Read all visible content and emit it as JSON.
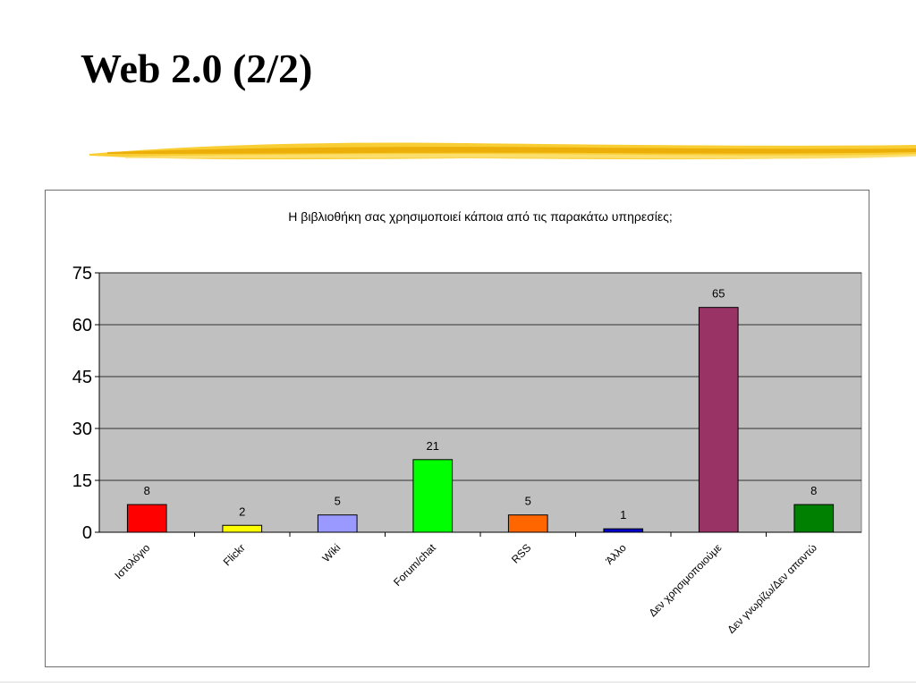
{
  "slide": {
    "title": "Web 2.0 (2/2)"
  },
  "colors": {
    "plot_background": "#c0c0c0",
    "gridline": "#000000",
    "brush_stroke": "#f5c518"
  },
  "chart_data": {
    "type": "bar",
    "title": "Η βιβλιοθήκη σας χρησιμοποιεί κάποια από τις παρακάτω υπηρεσίες;",
    "xlabel": "",
    "ylabel": "",
    "ylim": [
      0,
      75
    ],
    "yticks": [
      0,
      15,
      30,
      45,
      60,
      75
    ],
    "grid": true,
    "categories": [
      "Ιστολόγιο",
      "Flickr",
      "Wiki",
      "Forum/chat",
      "RSS",
      "Άλλο",
      "Δεν χρησιμοποιούμε",
      "Δεν γνωρίζω/Δεν απαντώ"
    ],
    "values": [
      8,
      2,
      5,
      21,
      5,
      1,
      65,
      8
    ],
    "data_labels": [
      "8",
      "2",
      "5",
      "21",
      "5",
      "1",
      "65",
      "8"
    ],
    "bar_colors": [
      "#ff0000",
      "#ffff00",
      "#9999ff",
      "#00ff00",
      "#ff6600",
      "#0000cc",
      "#993366",
      "#008000"
    ]
  }
}
